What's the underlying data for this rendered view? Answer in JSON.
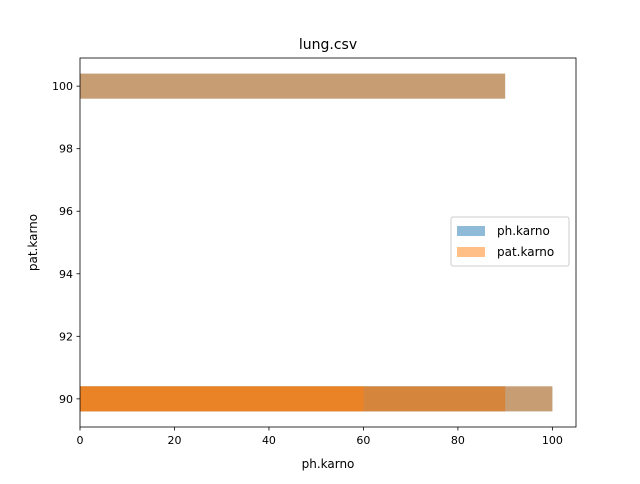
{
  "chart_data": {
    "type": "bar",
    "orientation": "horizontal",
    "title": "lung.csv",
    "xlabel": "ph.karno",
    "ylabel": "pat.karno",
    "xlim": [
      0,
      105
    ],
    "ylim": [
      89.1,
      100.9
    ],
    "bar_height": 0.8,
    "alpha": 0.5,
    "xticks": [
      "0",
      "20",
      "40",
      "60",
      "80",
      "100"
    ],
    "yticks": [
      "90",
      "92",
      "94",
      "96",
      "98",
      "100"
    ],
    "grid": false,
    "legend_position": "center-right",
    "series": [
      {
        "name": "ph.karno",
        "color": "#1f77b4",
        "bars": [
          {
            "y": 90,
            "x": 90
          },
          {
            "y": 100,
            "x": 90
          },
          {
            "y": 90,
            "x": 100
          }
        ]
      },
      {
        "name": "pat.karno",
        "color": "#ff7f0e",
        "bars": [
          {
            "y": 90,
            "x": 90
          },
          {
            "y": 100,
            "x": 90
          },
          {
            "y": 90,
            "x": 100
          },
          {
            "y": 90,
            "x": 60
          }
        ]
      }
    ]
  }
}
